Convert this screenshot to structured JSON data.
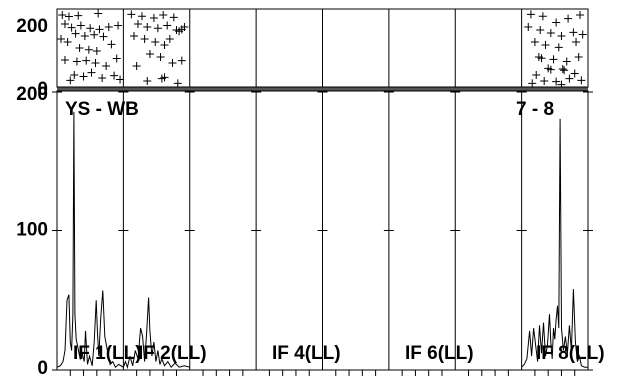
{
  "chart_data": {
    "type": "line",
    "title": "",
    "baseline": "YS - WB",
    "baseline_right": "7 - 8",
    "top_axis": {
      "ylim": [
        0,
        260
      ],
      "ticks": [
        {
          "v": 0,
          "label": "0"
        },
        {
          "v": 200,
          "label": "200"
        }
      ]
    },
    "main_axis": {
      "ylim": [
        0,
        200
      ],
      "ticks": [
        {
          "v": 0,
          "label": "0"
        },
        {
          "v": 100,
          "label": "100"
        },
        {
          "v": 200,
          "label": "200"
        }
      ]
    },
    "panel_labels": [
      "IF 1(LL)",
      "IF 2(LL)",
      "IF 4(LL)",
      "IF 6(LL)",
      "IF 8(LL)"
    ],
    "scatter": [
      {
        "x": 0.08,
        "y": 240
      },
      {
        "x": 0.18,
        "y": 235
      },
      {
        "x": 0.32,
        "y": 238
      },
      {
        "x": 0.12,
        "y": 210
      },
      {
        "x": 0.22,
        "y": 198
      },
      {
        "x": 0.36,
        "y": 205
      },
      {
        "x": 0.5,
        "y": 196
      },
      {
        "x": 0.64,
        "y": 192
      },
      {
        "x": 0.78,
        "y": 200
      },
      {
        "x": 0.92,
        "y": 205
      },
      {
        "x": 0.28,
        "y": 178
      },
      {
        "x": 0.42,
        "y": 170
      },
      {
        "x": 0.56,
        "y": 174
      },
      {
        "x": 0.7,
        "y": 168
      },
      {
        "x": 0.06,
        "y": 160
      },
      {
        "x": 0.16,
        "y": 150
      },
      {
        "x": 0.34,
        "y": 130
      },
      {
        "x": 0.48,
        "y": 124
      },
      {
        "x": 0.6,
        "y": 120
      },
      {
        "x": 0.82,
        "y": 142
      },
      {
        "x": 0.12,
        "y": 90
      },
      {
        "x": 0.3,
        "y": 85
      },
      {
        "x": 0.44,
        "y": 88
      },
      {
        "x": 0.58,
        "y": 80
      },
      {
        "x": 0.74,
        "y": 70
      },
      {
        "x": 0.9,
        "y": 95
      },
      {
        "x": 0.26,
        "y": 40
      },
      {
        "x": 0.4,
        "y": 35
      },
      {
        "x": 0.52,
        "y": 48
      },
      {
        "x": 0.68,
        "y": 30
      },
      {
        "x": 0.86,
        "y": 38
      },
      {
        "x": 0.2,
        "y": 22
      },
      {
        "x": 0.95,
        "y": 25
      },
      {
        "x": 0.62,
        "y": 245
      },
      {
        "x": 1.12,
        "y": 242
      },
      {
        "x": 1.28,
        "y": 236
      },
      {
        "x": 1.46,
        "y": 230
      },
      {
        "x": 1.6,
        "y": 240
      },
      {
        "x": 1.76,
        "y": 232
      },
      {
        "x": 1.22,
        "y": 210
      },
      {
        "x": 1.36,
        "y": 200
      },
      {
        "x": 1.52,
        "y": 196
      },
      {
        "x": 1.66,
        "y": 205
      },
      {
        "x": 1.8,
        "y": 190
      },
      {
        "x": 1.84,
        "y": 186
      },
      {
        "x": 1.88,
        "y": 192
      },
      {
        "x": 1.92,
        "y": 200
      },
      {
        "x": 1.16,
        "y": 170
      },
      {
        "x": 1.32,
        "y": 160
      },
      {
        "x": 1.48,
        "y": 150
      },
      {
        "x": 1.62,
        "y": 140
      },
      {
        "x": 1.7,
        "y": 160
      },
      {
        "x": 1.4,
        "y": 110
      },
      {
        "x": 1.56,
        "y": 100
      },
      {
        "x": 1.74,
        "y": 80
      },
      {
        "x": 1.88,
        "y": 88
      },
      {
        "x": 1.2,
        "y": 70
      },
      {
        "x": 1.58,
        "y": 28
      },
      {
        "x": 1.62,
        "y": 32
      },
      {
        "x": 1.82,
        "y": 12
      },
      {
        "x": 1.36,
        "y": 20
      },
      {
        "x": 7.14,
        "y": 242
      },
      {
        "x": 7.32,
        "y": 236
      },
      {
        "x": 7.52,
        "y": 215
      },
      {
        "x": 7.7,
        "y": 228
      },
      {
        "x": 7.88,
        "y": 240
      },
      {
        "x": 7.1,
        "y": 200
      },
      {
        "x": 7.28,
        "y": 190
      },
      {
        "x": 7.44,
        "y": 180
      },
      {
        "x": 7.6,
        "y": 170
      },
      {
        "x": 7.78,
        "y": 182
      },
      {
        "x": 7.92,
        "y": 175
      },
      {
        "x": 7.2,
        "y": 150
      },
      {
        "x": 7.36,
        "y": 140
      },
      {
        "x": 7.56,
        "y": 132
      },
      {
        "x": 7.82,
        "y": 150
      },
      {
        "x": 7.26,
        "y": 100
      },
      {
        "x": 7.3,
        "y": 96
      },
      {
        "x": 7.48,
        "y": 92
      },
      {
        "x": 7.68,
        "y": 85
      },
      {
        "x": 7.86,
        "y": 100
      },
      {
        "x": 7.4,
        "y": 62
      },
      {
        "x": 7.44,
        "y": 58
      },
      {
        "x": 7.62,
        "y": 60
      },
      {
        "x": 7.64,
        "y": 56
      },
      {
        "x": 7.22,
        "y": 40
      },
      {
        "x": 7.8,
        "y": 45
      },
      {
        "x": 7.34,
        "y": 20
      },
      {
        "x": 7.52,
        "y": 18
      },
      {
        "x": 7.72,
        "y": 28
      },
      {
        "x": 7.9,
        "y": 22
      },
      {
        "x": 7.16,
        "y": 12
      },
      {
        "x": 7.6,
        "y": 8
      }
    ],
    "spectrum_1": [
      {
        "x": 0.0,
        "y": 2
      },
      {
        "x": 0.05,
        "y": 3
      },
      {
        "x": 0.09,
        "y": 6
      },
      {
        "x": 0.12,
        "y": 14
      },
      {
        "x": 0.15,
        "y": 50
      },
      {
        "x": 0.18,
        "y": 54
      },
      {
        "x": 0.2,
        "y": 20
      },
      {
        "x": 0.22,
        "y": 14
      },
      {
        "x": 0.24,
        "y": 40
      },
      {
        "x": 0.255,
        "y": 185
      },
      {
        "x": 0.27,
        "y": 40
      },
      {
        "x": 0.29,
        "y": 22
      },
      {
        "x": 0.32,
        "y": 15
      },
      {
        "x": 0.35,
        "y": 8
      },
      {
        "x": 0.38,
        "y": 12
      },
      {
        "x": 0.41,
        "y": 6
      },
      {
        "x": 0.43,
        "y": 28
      },
      {
        "x": 0.46,
        "y": 4
      },
      {
        "x": 0.49,
        "y": 10
      },
      {
        "x": 0.53,
        "y": 3
      },
      {
        "x": 0.56,
        "y": 20
      },
      {
        "x": 0.59,
        "y": 50
      },
      {
        "x": 0.61,
        "y": 26
      },
      {
        "x": 0.63,
        "y": 10
      },
      {
        "x": 0.66,
        "y": 38
      },
      {
        "x": 0.69,
        "y": 57
      },
      {
        "x": 0.72,
        "y": 24
      },
      {
        "x": 0.76,
        "y": 14
      },
      {
        "x": 0.8,
        "y": 4
      },
      {
        "x": 0.84,
        "y": 6
      },
      {
        "x": 0.88,
        "y": 2
      },
      {
        "x": 0.93,
        "y": 4
      },
      {
        "x": 1.0,
        "y": 2
      },
      {
        "x": 1.03,
        "y": 6
      },
      {
        "x": 1.06,
        "y": 2
      },
      {
        "x": 1.1,
        "y": 10
      },
      {
        "x": 1.14,
        "y": 3
      },
      {
        "x": 1.18,
        "y": 14
      },
      {
        "x": 1.22,
        "y": 8
      },
      {
        "x": 1.26,
        "y": 30
      },
      {
        "x": 1.29,
        "y": 24
      },
      {
        "x": 1.32,
        "y": 6
      },
      {
        "x": 1.35,
        "y": 26
      },
      {
        "x": 1.38,
        "y": 52
      },
      {
        "x": 1.4,
        "y": 28
      },
      {
        "x": 1.43,
        "y": 10
      },
      {
        "x": 1.46,
        "y": 20
      },
      {
        "x": 1.49,
        "y": 6
      },
      {
        "x": 1.52,
        "y": 14
      },
      {
        "x": 1.55,
        "y": 4
      },
      {
        "x": 1.58,
        "y": 8
      },
      {
        "x": 1.62,
        "y": 3
      },
      {
        "x": 1.67,
        "y": 6
      },
      {
        "x": 1.72,
        "y": 2
      },
      {
        "x": 1.78,
        "y": 5
      },
      {
        "x": 1.84,
        "y": 2
      },
      {
        "x": 1.92,
        "y": 3
      },
      {
        "x": 2.0,
        "y": 2
      }
    ],
    "spectrum_2": [
      {
        "x": 7.0,
        "y": 2
      },
      {
        "x": 7.04,
        "y": 4
      },
      {
        "x": 7.08,
        "y": 8
      },
      {
        "x": 7.12,
        "y": 28
      },
      {
        "x": 7.15,
        "y": 10
      },
      {
        "x": 7.18,
        "y": 30
      },
      {
        "x": 7.21,
        "y": 18
      },
      {
        "x": 7.24,
        "y": 6
      },
      {
        "x": 7.27,
        "y": 32
      },
      {
        "x": 7.3,
        "y": 12
      },
      {
        "x": 7.33,
        "y": 34
      },
      {
        "x": 7.36,
        "y": 10
      },
      {
        "x": 7.39,
        "y": 18
      },
      {
        "x": 7.42,
        "y": 40
      },
      {
        "x": 7.44,
        "y": 20
      },
      {
        "x": 7.46,
        "y": 8
      },
      {
        "x": 7.48,
        "y": 30
      },
      {
        "x": 7.5,
        "y": 22
      },
      {
        "x": 7.52,
        "y": 36
      },
      {
        "x": 7.54,
        "y": 46
      },
      {
        "x": 7.56,
        "y": 30
      },
      {
        "x": 7.58,
        "y": 180
      },
      {
        "x": 7.6,
        "y": 30
      },
      {
        "x": 7.63,
        "y": 14
      },
      {
        "x": 7.66,
        "y": 24
      },
      {
        "x": 7.69,
        "y": 12
      },
      {
        "x": 7.72,
        "y": 32
      },
      {
        "x": 7.75,
        "y": 14
      },
      {
        "x": 7.78,
        "y": 58
      },
      {
        "x": 7.81,
        "y": 20
      },
      {
        "x": 7.84,
        "y": 6
      },
      {
        "x": 7.87,
        "y": 10
      },
      {
        "x": 7.9,
        "y": 3
      },
      {
        "x": 7.95,
        "y": 2
      },
      {
        "x": 8.0,
        "y": 2
      }
    ]
  }
}
